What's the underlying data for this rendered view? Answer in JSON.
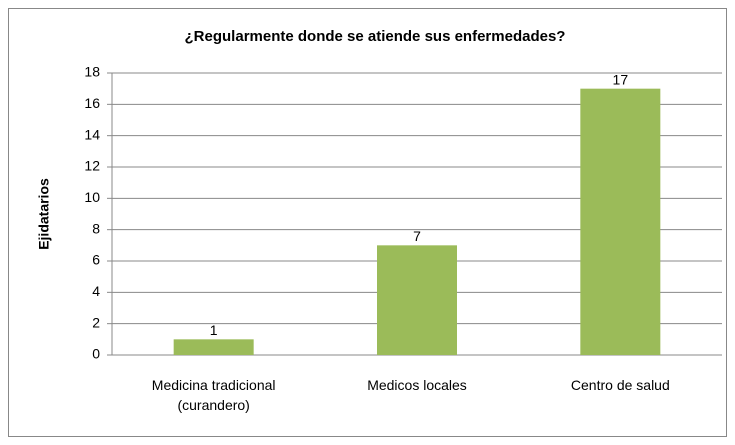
{
  "chart_data": {
    "type": "bar",
    "title": "¿Regularmente donde se atiende sus enfermedades?",
    "y_label": "Ejidatarios",
    "categories": [
      "Medicina tradicional (curandero)",
      "Medicos locales",
      "Centro de salud"
    ],
    "values": [
      1,
      7,
      17
    ],
    "color": "#9bbb59",
    "ylim": [
      0,
      18
    ],
    "yticks": [
      0,
      2,
      4,
      6,
      8,
      10,
      12,
      14,
      16,
      18
    ],
    "grid": true,
    "data_labels": true
  }
}
